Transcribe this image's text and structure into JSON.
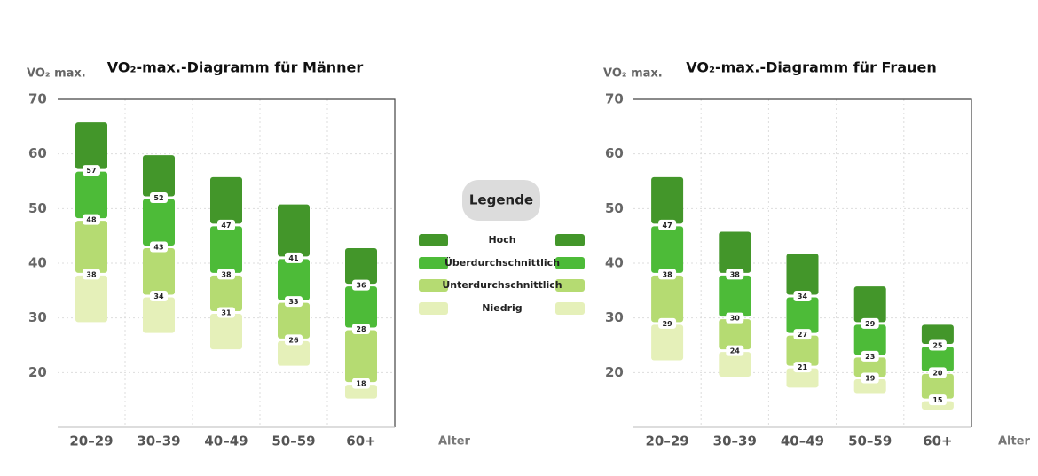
{
  "chart_data": [
    {
      "type": "range",
      "title": "VO₂-max.-Diagramm für Männer",
      "y_label": "VO₂ max.",
      "x_label": "Alter",
      "categories": [
        "20–29",
        "30–39",
        "40–49",
        "50–59",
        "60+"
      ],
      "base": [
        29,
        27,
        24,
        21,
        15
      ],
      "series": [
        {
          "name": "Niedrig",
          "color": "#e5f0b9",
          "show_labels": true,
          "values": [
            38,
            34,
            31,
            26,
            18
          ]
        },
        {
          "name": "Unterdurchschnittlich",
          "color": "#b5db72",
          "show_labels": true,
          "values": [
            48,
            43,
            38,
            33,
            28
          ]
        },
        {
          "name": "Überdurchschnittlich",
          "color": "#4dbb38",
          "show_labels": true,
          "values": [
            57,
            52,
            47,
            41,
            36
          ]
        },
        {
          "name": "Hoch",
          "color": "#43962a",
          "show_labels": false,
          "values": [
            66,
            60,
            56,
            51,
            43
          ]
        }
      ],
      "ylim": [
        10,
        70
      ],
      "yticks": [
        20,
        30,
        40,
        50,
        60,
        70
      ],
      "grid": true
    },
    {
      "type": "range",
      "title": "VO₂-max.-Diagramm für Frauen",
      "y_label": "VO₂ max.",
      "x_label": "Alter",
      "categories": [
        "20–29",
        "30–39",
        "40–49",
        "50–59",
        "60+"
      ],
      "base": [
        22,
        19,
        17,
        16,
        13
      ],
      "series": [
        {
          "color": "#e5f0b9",
          "show_labels": true,
          "values": [
            29,
            24,
            21,
            19,
            15
          ]
        },
        {
          "color": "#b5db72",
          "show_labels": true,
          "values": [
            38,
            30,
            27,
            23,
            20
          ]
        },
        {
          "color": "#4dbb38",
          "show_labels": true,
          "values": [
            47,
            38,
            34,
            29,
            25
          ]
        },
        {
          "color": "#43962a",
          "show_labels": false,
          "values": [
            56,
            46,
            42,
            36,
            29
          ]
        }
      ],
      "ylim": [
        10,
        70
      ],
      "yticks": [
        20,
        30,
        40,
        50,
        60,
        70
      ],
      "grid": true
    }
  ],
  "legend": {
    "title": "Legende"
  }
}
